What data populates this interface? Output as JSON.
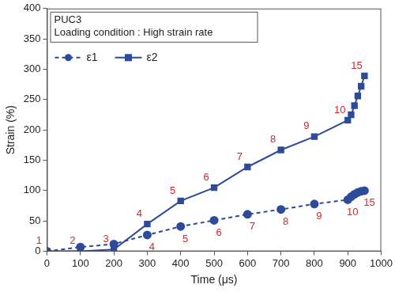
{
  "chart_data": {
    "type": "line",
    "annotations": [
      "PUC3",
      "Loading condition : High strain rate"
    ],
    "x_label": "Time (μs)",
    "y_label": "Strain (%)",
    "x": [
      0,
      100,
      200,
      300,
      400,
      500,
      600,
      700,
      800,
      900,
      910,
      920,
      930,
      940,
      950
    ],
    "series": [
      {
        "name": "ε1",
        "color": "#2e4a9a",
        "marker": "circle",
        "line_style": "dashed",
        "values": [
          0,
          7,
          12,
          27,
          41,
          51,
          61,
          69,
          78,
          85,
          90,
          94,
          97,
          99,
          100
        ],
        "point_labels": [
          null,
          null,
          null,
          4,
          5,
          6,
          7,
          8,
          9,
          10,
          null,
          null,
          null,
          null,
          15
        ]
      },
      {
        "name": "ε2",
        "color": "#2e4a9a",
        "marker": "square",
        "line_style": "solid",
        "values": [
          0,
          0,
          3,
          45,
          83,
          105,
          139,
          167,
          189,
          216,
          225,
          240,
          256,
          272,
          289
        ],
        "point_labels": [
          1,
          2,
          3,
          4,
          5,
          6,
          7,
          8,
          9,
          10,
          null,
          null,
          null,
          null,
          15
        ]
      }
    ],
    "xlim": [
      0,
      1000
    ],
    "xticks": [
      0,
      100,
      200,
      300,
      400,
      500,
      600,
      700,
      800,
      900,
      1000
    ],
    "ylim": [
      0,
      400
    ],
    "yticks": [
      0,
      50,
      100,
      150,
      200,
      250,
      300,
      350,
      400
    ],
    "grid": false,
    "legend": "upper left"
  }
}
